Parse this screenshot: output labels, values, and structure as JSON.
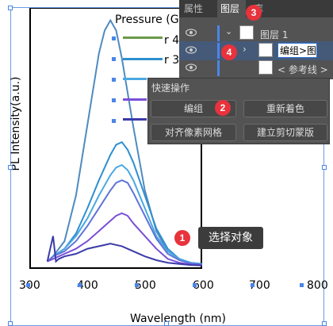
{
  "chart": {
    "legend_title": "Pressure (GP",
    "legend_items": [
      {
        "label": "r 4",
        "color": "#6b9a4a"
      },
      {
        "label": "r 3",
        "color": "#2f8fd0"
      },
      {
        "label": "",
        "color": "#4aa8e0"
      },
      {
        "label": "",
        "color": "#7a4fd8"
      },
      {
        "label": "",
        "color": "#3b3ba8"
      }
    ],
    "xlabel": "Wavelength (nm)",
    "ylabel": "PL Intensity(a.u.)",
    "x_ticks": [
      "300",
      "400",
      "500",
      "600",
      "700",
      "800"
    ]
  },
  "chart_data": {
    "type": "line",
    "xlabel": "Wavelength (nm)",
    "ylabel": "PL Intensity(a.u.)",
    "xlim": [
      300,
      600
    ],
    "series": [
      {
        "color": "#4f8ac0",
        "x": [
          330,
          340,
          360,
          380,
          400,
          420,
          430,
          440,
          450,
          460,
          480,
          500,
          520,
          540,
          560,
          580,
          600
        ],
        "y": [
          0.02,
          0.04,
          0.1,
          0.28,
          0.56,
          0.84,
          0.93,
          0.97,
          0.93,
          0.82,
          0.55,
          0.3,
          0.14,
          0.06,
          0.03,
          0.015,
          0.01
        ]
      },
      {
        "color": "#2f8fd0",
        "x": [
          330,
          340,
          360,
          380,
          400,
          420,
          440,
          450,
          460,
          470,
          480,
          500,
          520,
          540,
          560,
          580,
          600
        ],
        "y": [
          0.02,
          0.04,
          0.07,
          0.13,
          0.23,
          0.34,
          0.44,
          0.48,
          0.49,
          0.46,
          0.41,
          0.28,
          0.15,
          0.07,
          0.03,
          0.015,
          0.01
        ]
      },
      {
        "color": "#4aa8e0",
        "x": [
          330,
          340,
          360,
          380,
          400,
          420,
          440,
          450,
          460,
          470,
          480,
          500,
          520,
          540,
          560,
          580,
          600
        ],
        "y": [
          0.02,
          0.04,
          0.07,
          0.12,
          0.19,
          0.28,
          0.36,
          0.39,
          0.4,
          0.38,
          0.34,
          0.23,
          0.12,
          0.06,
          0.03,
          0.015,
          0.01
        ]
      },
      {
        "color": "#5f74d8",
        "x": [
          330,
          340,
          360,
          380,
          400,
          420,
          440,
          450,
          460,
          470,
          480,
          500,
          520,
          540,
          560,
          580,
          600
        ],
        "y": [
          0.02,
          0.04,
          0.06,
          0.1,
          0.16,
          0.23,
          0.3,
          0.33,
          0.34,
          0.33,
          0.29,
          0.2,
          0.11,
          0.05,
          0.025,
          0.012,
          0.008
        ]
      },
      {
        "color": "#7a4fd8",
        "x": [
          330,
          340,
          360,
          380,
          400,
          420,
          440,
          450,
          460,
          470,
          480,
          500,
          520,
          540,
          560,
          580,
          600
        ],
        "y": [
          0.02,
          0.03,
          0.05,
          0.07,
          0.1,
          0.14,
          0.18,
          0.2,
          0.21,
          0.2,
          0.17,
          0.12,
          0.07,
          0.03,
          0.015,
          0.008,
          0.005
        ]
      },
      {
        "color": "#3b3ba8",
        "x": [
          330,
          340,
          345,
          350,
          360,
          380,
          400,
          420,
          440,
          450,
          460,
          480,
          500,
          520,
          540,
          560,
          580,
          600
        ],
        "y": [
          0.02,
          0.12,
          0.02,
          0.03,
          0.04,
          0.05,
          0.07,
          0.08,
          0.09,
          0.085,
          0.08,
          0.06,
          0.04,
          0.025,
          0.015,
          0.01,
          0.006,
          0.004
        ]
      }
    ]
  },
  "layers": {
    "tabs": [
      "属性",
      "图层",
      "库"
    ],
    "rows": [
      {
        "name": "图层 1"
      },
      {
        "name": "编组>图"
      },
      {
        "name": "< 参考线 >"
      }
    ]
  },
  "quick_actions": {
    "title": "快速操作",
    "buttons": [
      "编组",
      "重新着色",
      "对齐像素网格",
      "建立剪切蒙版"
    ]
  },
  "badges": [
    "1",
    "2",
    "3",
    "4"
  ],
  "tooltip": "选择对象"
}
